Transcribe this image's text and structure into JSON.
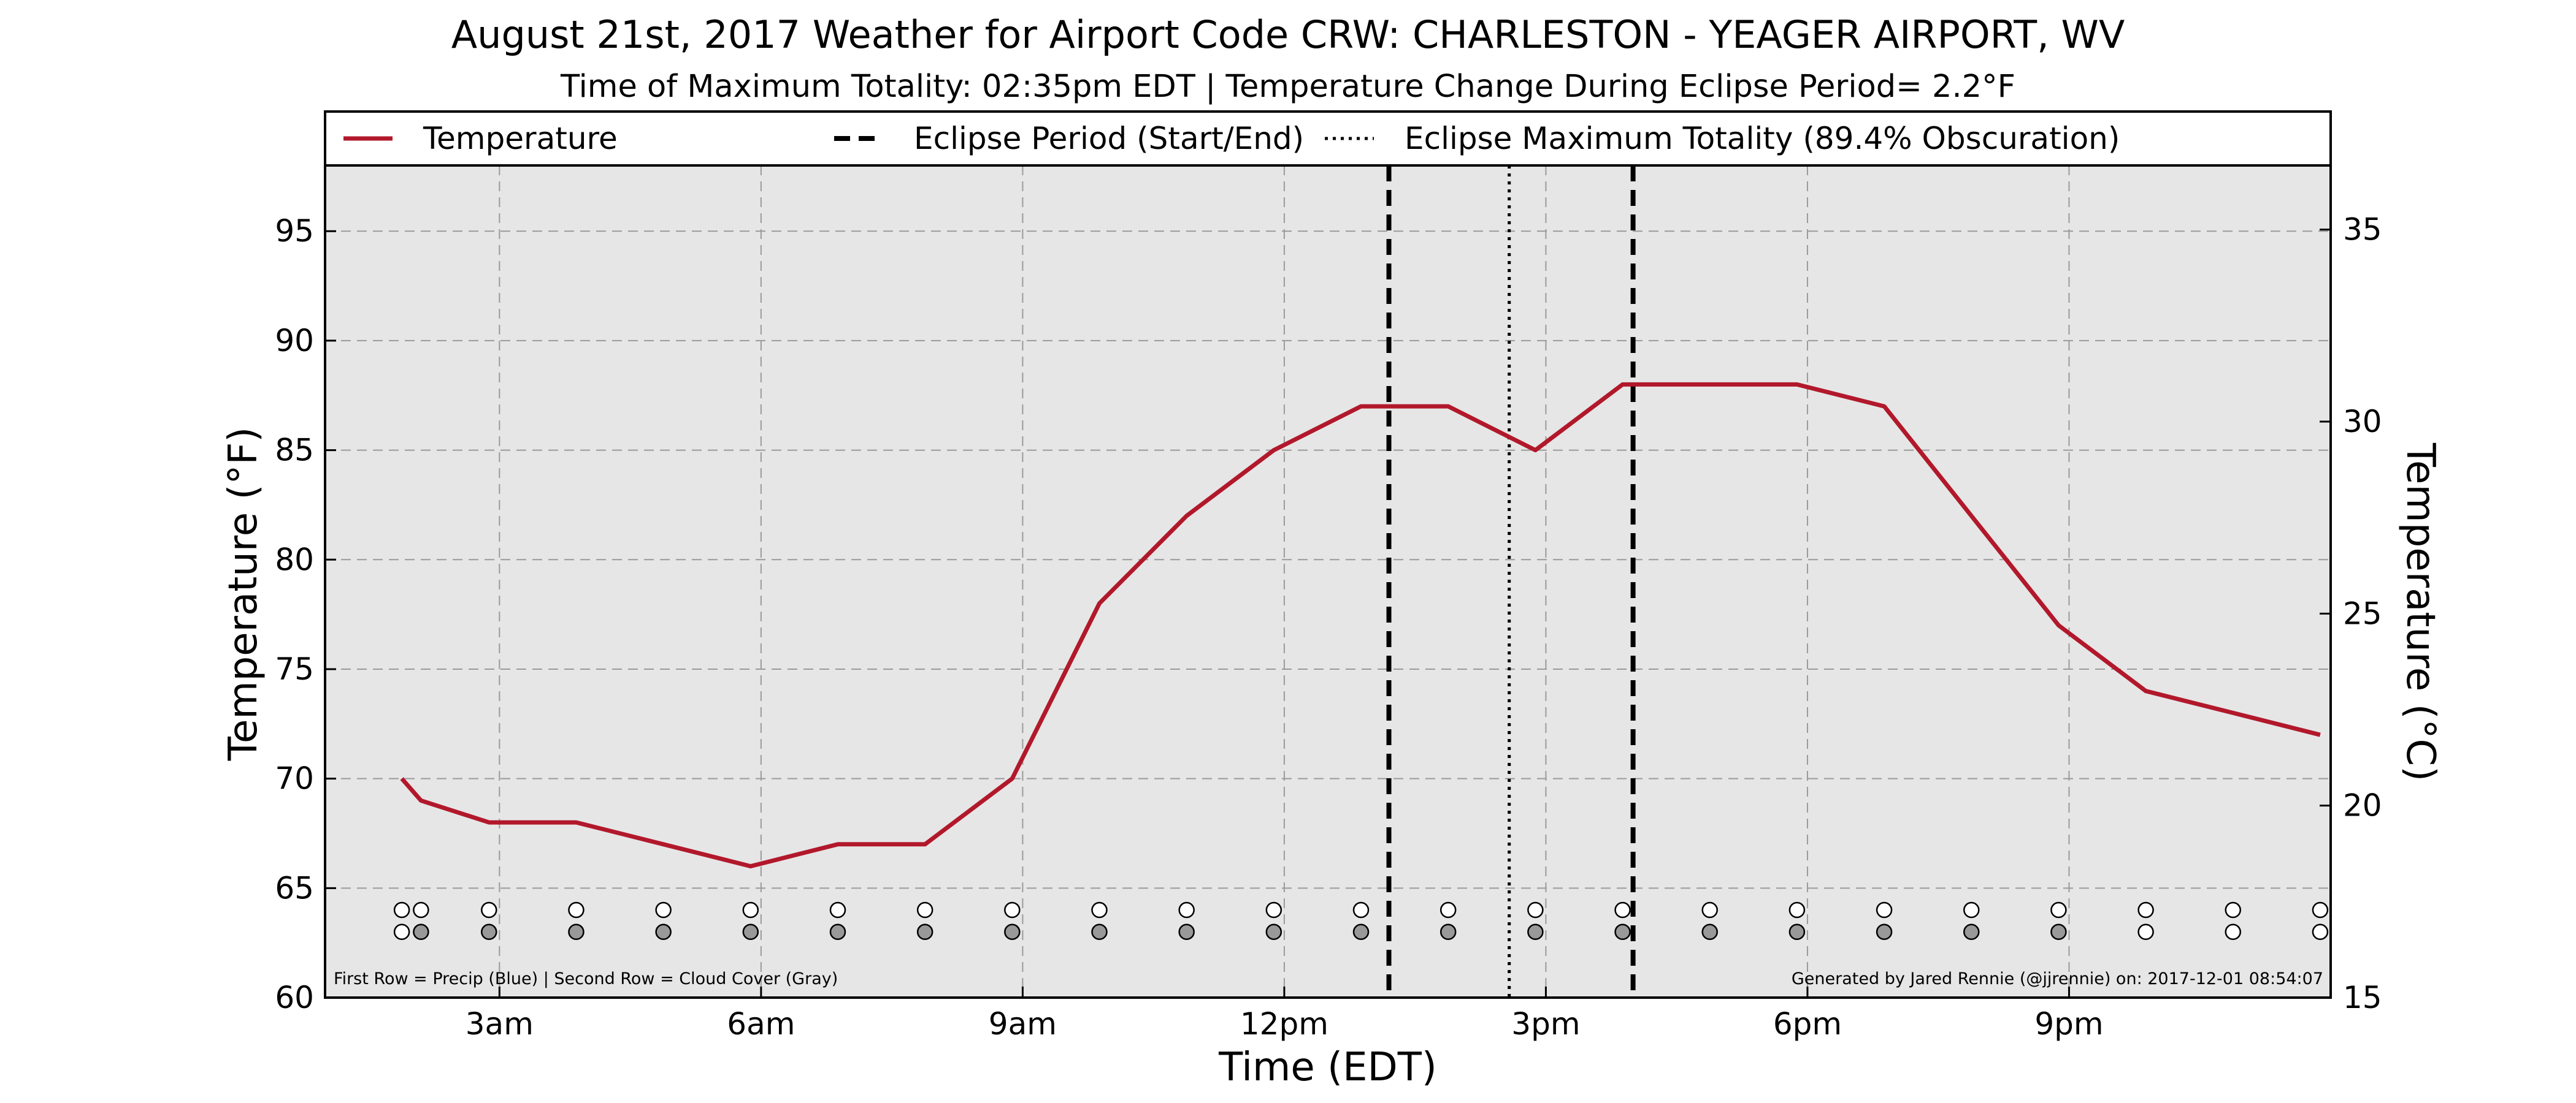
{
  "chart_data": {
    "type": "line",
    "title": "August 21st, 2017 Weather for Airport Code CRW: CHARLESTON - YEAGER AIRPORT, WV",
    "subtitle": "Time of Maximum Totality: 02:35pm EDT | Temperature Change During Eclipse Period= 2.2$^\\circ$F",
    "subtitle_display": "Time of Maximum Totality: 02:35pm EDT | Temperature Change During Eclipse Period= 2.2°F",
    "xlabel": "Time (EDT)",
    "ylabel": "Temperature (°F)",
    "ylabel_right": "Temperature (°C)",
    "x_unit": "hours since midnight EDT",
    "xlim": [
      1.0,
      24.0
    ],
    "ylim": [
      60,
      98
    ],
    "ylim_right": [
      15,
      36.67
    ],
    "x_ticks": [
      {
        "x": 3,
        "label": "3am"
      },
      {
        "x": 6,
        "label": "6am"
      },
      {
        "x": 9,
        "label": "9am"
      },
      {
        "x": 12,
        "label": "12pm"
      },
      {
        "x": 15,
        "label": "3pm"
      },
      {
        "x": 18,
        "label": "6pm"
      },
      {
        "x": 21,
        "label": "9pm"
      }
    ],
    "y_ticks": [
      {
        "y": 60,
        "label": "60"
      },
      {
        "y": 65,
        "label": "65"
      },
      {
        "y": 70,
        "label": "70"
      },
      {
        "y": 75,
        "label": "75"
      },
      {
        "y": 80,
        "label": "80"
      },
      {
        "y": 85,
        "label": "85"
      },
      {
        "y": 90,
        "label": "90"
      },
      {
        "y": 95,
        "label": "95"
      }
    ],
    "y_ticks_right": [
      {
        "y": 15,
        "label": "15"
      },
      {
        "y": 20,
        "label": "20"
      },
      {
        "y": 25,
        "label": "25"
      },
      {
        "y": 30,
        "label": "30"
      },
      {
        "y": 35,
        "label": "35"
      }
    ],
    "grid": true,
    "legend_position": "top, above plot",
    "legend": [
      {
        "label": "Temperature",
        "style": "solid",
        "color": "#b2182b"
      },
      {
        "label": "Eclipse Period (Start/End)",
        "style": "dashed",
        "color": "#000000"
      },
      {
        "label": "Eclipse Maximum Totality (89.4% Obscuration)",
        "style": "dotted",
        "color": "#000000"
      }
    ],
    "series": [
      {
        "name": "Temperature",
        "color": "#b2182b",
        "x": [
          1.88,
          2.1,
          2.88,
          3.88,
          4.88,
          5.88,
          6.88,
          7.88,
          8.88,
          9.88,
          10.88,
          11.88,
          12.88,
          13.88,
          14.88,
          15.88,
          16.88,
          17.88,
          18.88,
          19.88,
          20.88,
          21.88,
          22.88,
          23.88
        ],
        "y": [
          70,
          69,
          68,
          68,
          67,
          66,
          67,
          67,
          70,
          78,
          82,
          85,
          87,
          87,
          85,
          88,
          88,
          88,
          87,
          82,
          77,
          74,
          73,
          72
        ]
      }
    ],
    "eclipse_start": 13.2,
    "eclipse_end": 16.0,
    "eclipse_max": 14.58,
    "precip_row": {
      "y": 64,
      "x": [
        1.88,
        2.1,
        2.88,
        3.88,
        4.88,
        5.88,
        6.88,
        7.88,
        8.88,
        9.88,
        10.88,
        11.88,
        12.88,
        13.88,
        14.88,
        15.88,
        16.88,
        17.88,
        18.88,
        19.88,
        20.88,
        21.88,
        22.88,
        23.88
      ],
      "colors": [
        "#ffffff",
        "#ffffff",
        "#ffffff",
        "#ffffff",
        "#ffffff",
        "#ffffff",
        "#ffffff",
        "#ffffff",
        "#ffffff",
        "#ffffff",
        "#ffffff",
        "#ffffff",
        "#ffffff",
        "#ffffff",
        "#ffffff",
        "#ffffff",
        "#ffffff",
        "#ffffff",
        "#ffffff",
        "#ffffff",
        "#ffffff",
        "#ffffff",
        "#ffffff",
        "#ffffff"
      ]
    },
    "cloud_row": {
      "y": 63,
      "x": [
        1.88,
        2.1,
        2.88,
        3.88,
        4.88,
        5.88,
        6.88,
        7.88,
        8.88,
        9.88,
        10.88,
        11.88,
        12.88,
        13.88,
        14.88,
        15.88,
        16.88,
        17.88,
        18.88,
        19.88,
        20.88,
        21.88,
        22.88,
        23.88
      ],
      "colors": [
        "#ffffff",
        "#999999",
        "#999999",
        "#999999",
        "#999999",
        "#999999",
        "#999999",
        "#999999",
        "#999999",
        "#999999",
        "#999999",
        "#999999",
        "#999999",
        "#999999",
        "#999999",
        "#999999",
        "#999999",
        "#999999",
        "#999999",
        "#999999",
        "#999999",
        "#ffffff",
        "#ffffff",
        "#ffffff"
      ]
    },
    "footnote_left": "First Row = Precip (Blue) | Second Row = Cloud Cover (Gray)",
    "footnote_right": "Generated by Jared Rennie (@jjrennie) on: 2017-12-01 08:54:07"
  }
}
